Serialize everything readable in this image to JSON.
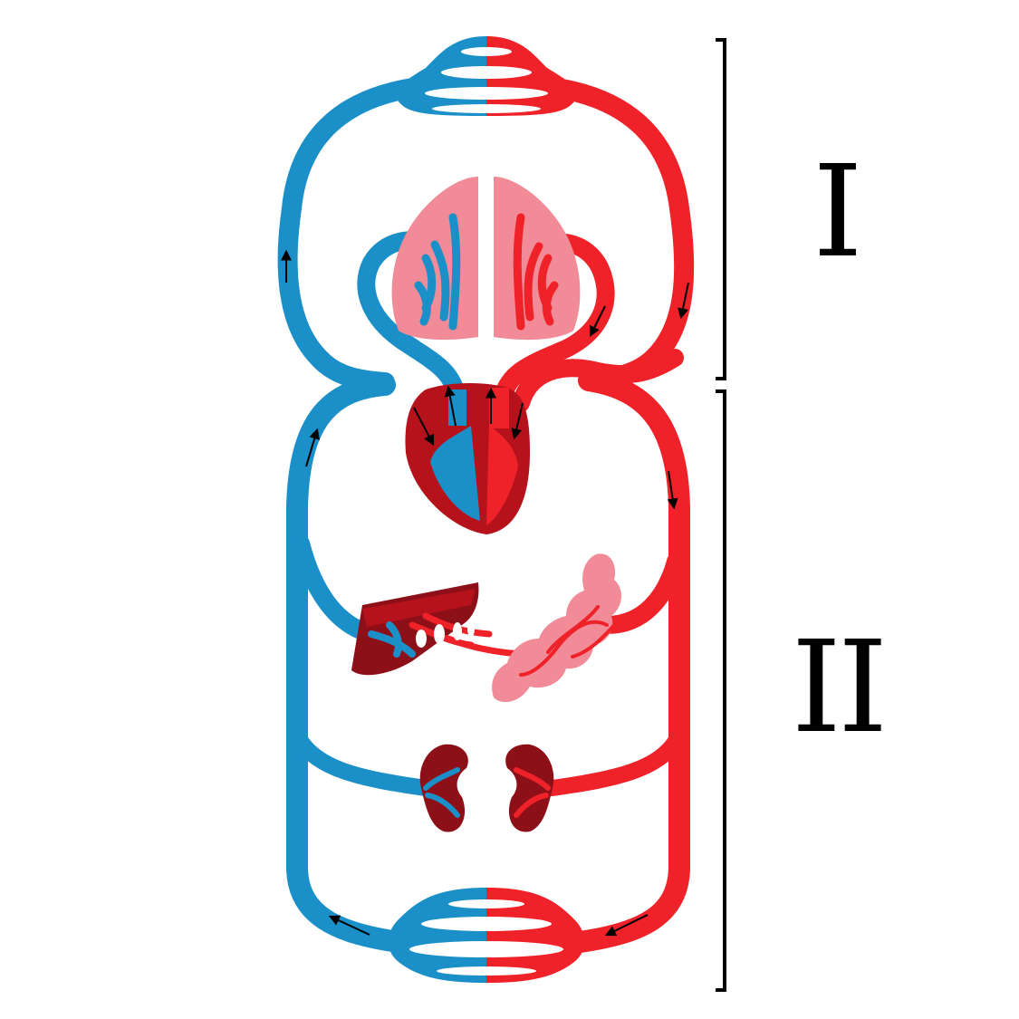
{
  "labels": {
    "upper_loop": "I",
    "lower_loop": "II"
  },
  "colors": {
    "venous": "#1b8fc8",
    "arterial": "#ee2228",
    "heart_dark": "#b5121b",
    "organ_dark": "#8d0f17",
    "lung_pink": "#f28b98",
    "lung_light": "#f6a5af",
    "bracket": "#000000"
  },
  "icons": [
    "head-capillary-icon",
    "lungs-icon",
    "heart-icon",
    "liver-icon",
    "intestine-icon",
    "kidney-icon",
    "leg-capillary-icon",
    "flow-arrow-icon"
  ]
}
